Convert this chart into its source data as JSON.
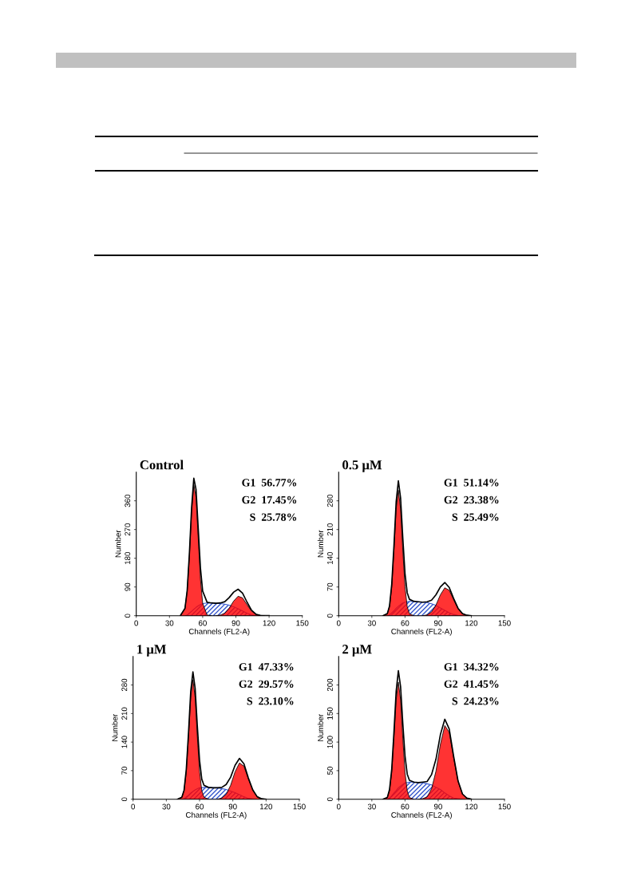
{
  "chart_data": [
    {
      "type": "area",
      "title": "Control",
      "xlabel": "Channels (FL2-A)",
      "ylabel": "Number",
      "xlim": [
        0,
        150
      ],
      "xticks": [
        0,
        30,
        60,
        90,
        120,
        150
      ],
      "ylim": [
        0,
        450
      ],
      "yticks": [
        0,
        90,
        180,
        270,
        360
      ],
      "annotations": [
        "G1  56.77%",
        "G2  17.45%",
        "S  25.78%"
      ],
      "series": [
        {
          "type": "area",
          "color": "#ff0000",
          "x": [
            40,
            44,
            46,
            48,
            50,
            52,
            54,
            56,
            58,
            60,
            64,
            68
          ],
          "values": [
            1,
            23,
            77,
            187,
            325,
            411,
            370,
            242,
            114,
            39,
            2,
            0
          ]
        },
        {
          "type": "area",
          "color": "#ff0000",
          "x": [
            72,
            76,
            80,
            84,
            88,
            92,
            96,
            100,
            104,
            108,
            112,
            116
          ],
          "values": [
            0,
            2,
            8,
            24,
            46,
            61,
            56,
            35,
            15,
            4,
            1,
            0
          ]
        },
        {
          "type": "area",
          "color": "#3355cc",
          "x": [
            44,
            46,
            48,
            50,
            52,
            54,
            56,
            58,
            60,
            64,
            68,
            72,
            76,
            80,
            84,
            88,
            92,
            96,
            100,
            104,
            108,
            112
          ],
          "values": [
            0,
            2,
            8,
            14,
            20,
            26,
            31,
            35,
            38,
            40,
            40,
            39,
            38,
            36,
            33,
            28,
            22,
            15,
            8,
            3,
            1,
            0
          ]
        },
        {
          "type": "line",
          "color": "#000000",
          "x": [
            40,
            44,
            46,
            48,
            50,
            52,
            54,
            56,
            58,
            60,
            64,
            68,
            72,
            76,
            80,
            84,
            88,
            92,
            96,
            100,
            104,
            108,
            112,
            116,
            120
          ],
          "values": [
            1,
            23,
            79,
            195,
            339,
            431,
            396,
            273,
            149,
            77,
            42,
            40,
            39,
            40,
            44,
            57,
            74,
            83,
            71,
            43,
            18,
            5,
            1,
            0,
            0
          ]
        }
      ]
    },
    {
      "type": "area",
      "title": "0.5 μM",
      "xlabel": "Channels (FL2-A)",
      "ylabel": "Number",
      "xlim": [
        0,
        150
      ],
      "xticks": [
        0,
        30,
        60,
        90,
        120,
        150
      ],
      "ylim": [
        0,
        350
      ],
      "yticks": [
        0,
        70,
        140,
        210,
        280
      ],
      "annotations": [
        "G1  51.14%",
        "G2  23.38%",
        "S  25.49%"
      ],
      "series": [
        {
          "type": "area",
          "color": "#ff0000",
          "x": [
            40,
            44,
            46,
            48,
            50,
            52,
            54,
            56,
            58,
            60,
            62,
            64,
            68
          ],
          "values": [
            0,
            5,
            22,
            70,
            159,
            260,
            306,
            260,
            159,
            70,
            22,
            5,
            0
          ]
        },
        {
          "type": "area",
          "color": "#ff0000",
          "x": [
            76,
            80,
            84,
            88,
            92,
            96,
            100,
            104,
            108,
            112,
            116,
            120
          ],
          "values": [
            0,
            2,
            9,
            26,
            51,
            68,
            62,
            39,
            17,
            5,
            1,
            0
          ]
        },
        {
          "type": "area",
          "color": "#3355cc",
          "x": [
            44,
            46,
            48,
            50,
            52,
            54,
            56,
            58,
            60,
            62,
            64,
            68,
            72,
            76,
            80,
            84,
            88,
            92,
            96,
            100,
            104,
            108,
            112
          ],
          "values": [
            0,
            2,
            7,
            12,
            18,
            23,
            27,
            31,
            33,
            34,
            35,
            35,
            34,
            33,
            32,
            29,
            25,
            19,
            13,
            7,
            3,
            1,
            0
          ]
        },
        {
          "type": "line",
          "color": "#000000",
          "x": [
            40,
            44,
            46,
            48,
            50,
            52,
            54,
            56,
            58,
            60,
            62,
            64,
            68,
            72,
            76,
            80,
            84,
            88,
            92,
            96,
            100,
            104,
            108,
            112,
            116,
            120
          ],
          "values": [
            0,
            5,
            24,
            77,
            171,
            278,
            329,
            287,
            190,
            103,
            56,
            40,
            35,
            34,
            33,
            34,
            38,
            51,
            70,
            81,
            69,
            42,
            18,
            5,
            1,
            0
          ]
        }
      ]
    },
    {
      "type": "area",
      "title": "1 μM",
      "xlabel": "Channels (FL2-A)",
      "ylabel": "Number",
      "xlim": [
        0,
        150
      ],
      "xticks": [
        0,
        30,
        60,
        90,
        120,
        150
      ],
      "ylim": [
        0,
        350
      ],
      "yticks": [
        0,
        70,
        140,
        210,
        280
      ],
      "annotations": [
        "G1  47.33%",
        "G2  29.57%",
        "S  23.10%"
      ],
      "series": [
        {
          "type": "area",
          "color": "#ff0000",
          "x": [
            40,
            44,
            46,
            48,
            50,
            52,
            54,
            56,
            58,
            60,
            62,
            64,
            68
          ],
          "values": [
            0,
            5,
            21,
            67,
            152,
            249,
            293,
            249,
            152,
            67,
            21,
            5,
            0
          ]
        },
        {
          "type": "area",
          "color": "#ff0000",
          "x": [
            76,
            80,
            84,
            88,
            92,
            96,
            100,
            104,
            108,
            112,
            116,
            120
          ],
          "values": [
            0,
            3,
            12,
            34,
            67,
            89,
            81,
            50,
            22,
            6,
            1,
            0
          ]
        },
        {
          "type": "area",
          "color": "#3355cc",
          "x": [
            44,
            46,
            48,
            50,
            52,
            54,
            56,
            58,
            60,
            62,
            64,
            68,
            72,
            76,
            80,
            84,
            88,
            92,
            96,
            100,
            104,
            108,
            112
          ],
          "values": [
            0,
            1,
            6,
            10,
            15,
            19,
            23,
            26,
            28,
            28,
            29,
            29,
            28,
            28,
            26,
            24,
            20,
            16,
            11,
            6,
            2,
            1,
            0
          ]
        },
        {
          "type": "line",
          "color": "#000000",
          "x": [
            40,
            44,
            46,
            48,
            50,
            52,
            54,
            56,
            58,
            60,
            62,
            64,
            68,
            72,
            76,
            80,
            84,
            88,
            92,
            96,
            100,
            104,
            108,
            112,
            116,
            120
          ],
          "values": [
            0,
            5,
            22,
            73,
            162,
            264,
            312,
            272,
            178,
            95,
            49,
            34,
            29,
            28,
            28,
            29,
            36,
            54,
            83,
            100,
            87,
            52,
            23,
            6,
            1,
            0
          ]
        }
      ]
    },
    {
      "type": "area",
      "title": "2 μM",
      "xlabel": "Channels (FL2-A)",
      "ylabel": "Number",
      "xlim": [
        0,
        150
      ],
      "xticks": [
        0,
        30,
        60,
        90,
        120,
        150
      ],
      "ylim": [
        0,
        250
      ],
      "yticks": [
        0,
        50,
        100,
        150,
        200
      ],
      "annotations": [
        "G1  34.32%",
        "G2  41.45%",
        "S  24.23%"
      ],
      "series": [
        {
          "type": "area",
          "color": "#ff0000",
          "x": [
            40,
            44,
            46,
            48,
            50,
            52,
            54,
            56,
            58,
            60,
            62,
            64,
            68
          ],
          "values": [
            0,
            3,
            15,
            47,
            107,
            174,
            205,
            174,
            107,
            47,
            15,
            3,
            0
          ]
        },
        {
          "type": "area",
          "color": "#ff0000",
          "x": [
            72,
            76,
            80,
            84,
            88,
            92,
            96,
            100,
            104,
            108,
            112,
            116,
            120
          ],
          "values": [
            0,
            1,
            4,
            18,
            49,
            96,
            129,
            117,
            73,
            31,
            9,
            2,
            0
          ]
        },
        {
          "type": "area",
          "color": "#3355cc",
          "x": [
            44,
            46,
            48,
            50,
            52,
            54,
            56,
            58,
            60,
            62,
            64,
            68,
            72,
            76,
            80,
            84,
            88,
            92,
            96,
            100,
            104,
            108,
            112
          ],
          "values": [
            0,
            2,
            6,
            11,
            15,
            20,
            23,
            26,
            29,
            29,
            30,
            30,
            29,
            29,
            27,
            25,
            21,
            17,
            11,
            6,
            2,
            1,
            0
          ]
        },
        {
          "type": "line",
          "color": "#000000",
          "x": [
            40,
            44,
            46,
            48,
            50,
            52,
            54,
            56,
            58,
            60,
            62,
            64,
            68,
            72,
            76,
            80,
            84,
            88,
            92,
            96,
            100,
            104,
            108,
            112,
            116,
            120
          ],
          "values": [
            0,
            3,
            17,
            53,
            118,
            189,
            225,
            197,
            133,
            76,
            44,
            33,
            30,
            29,
            30,
            31,
            43,
            70,
            113,
            140,
            123,
            75,
            32,
            9,
            2,
            0
          ]
        }
      ]
    }
  ]
}
